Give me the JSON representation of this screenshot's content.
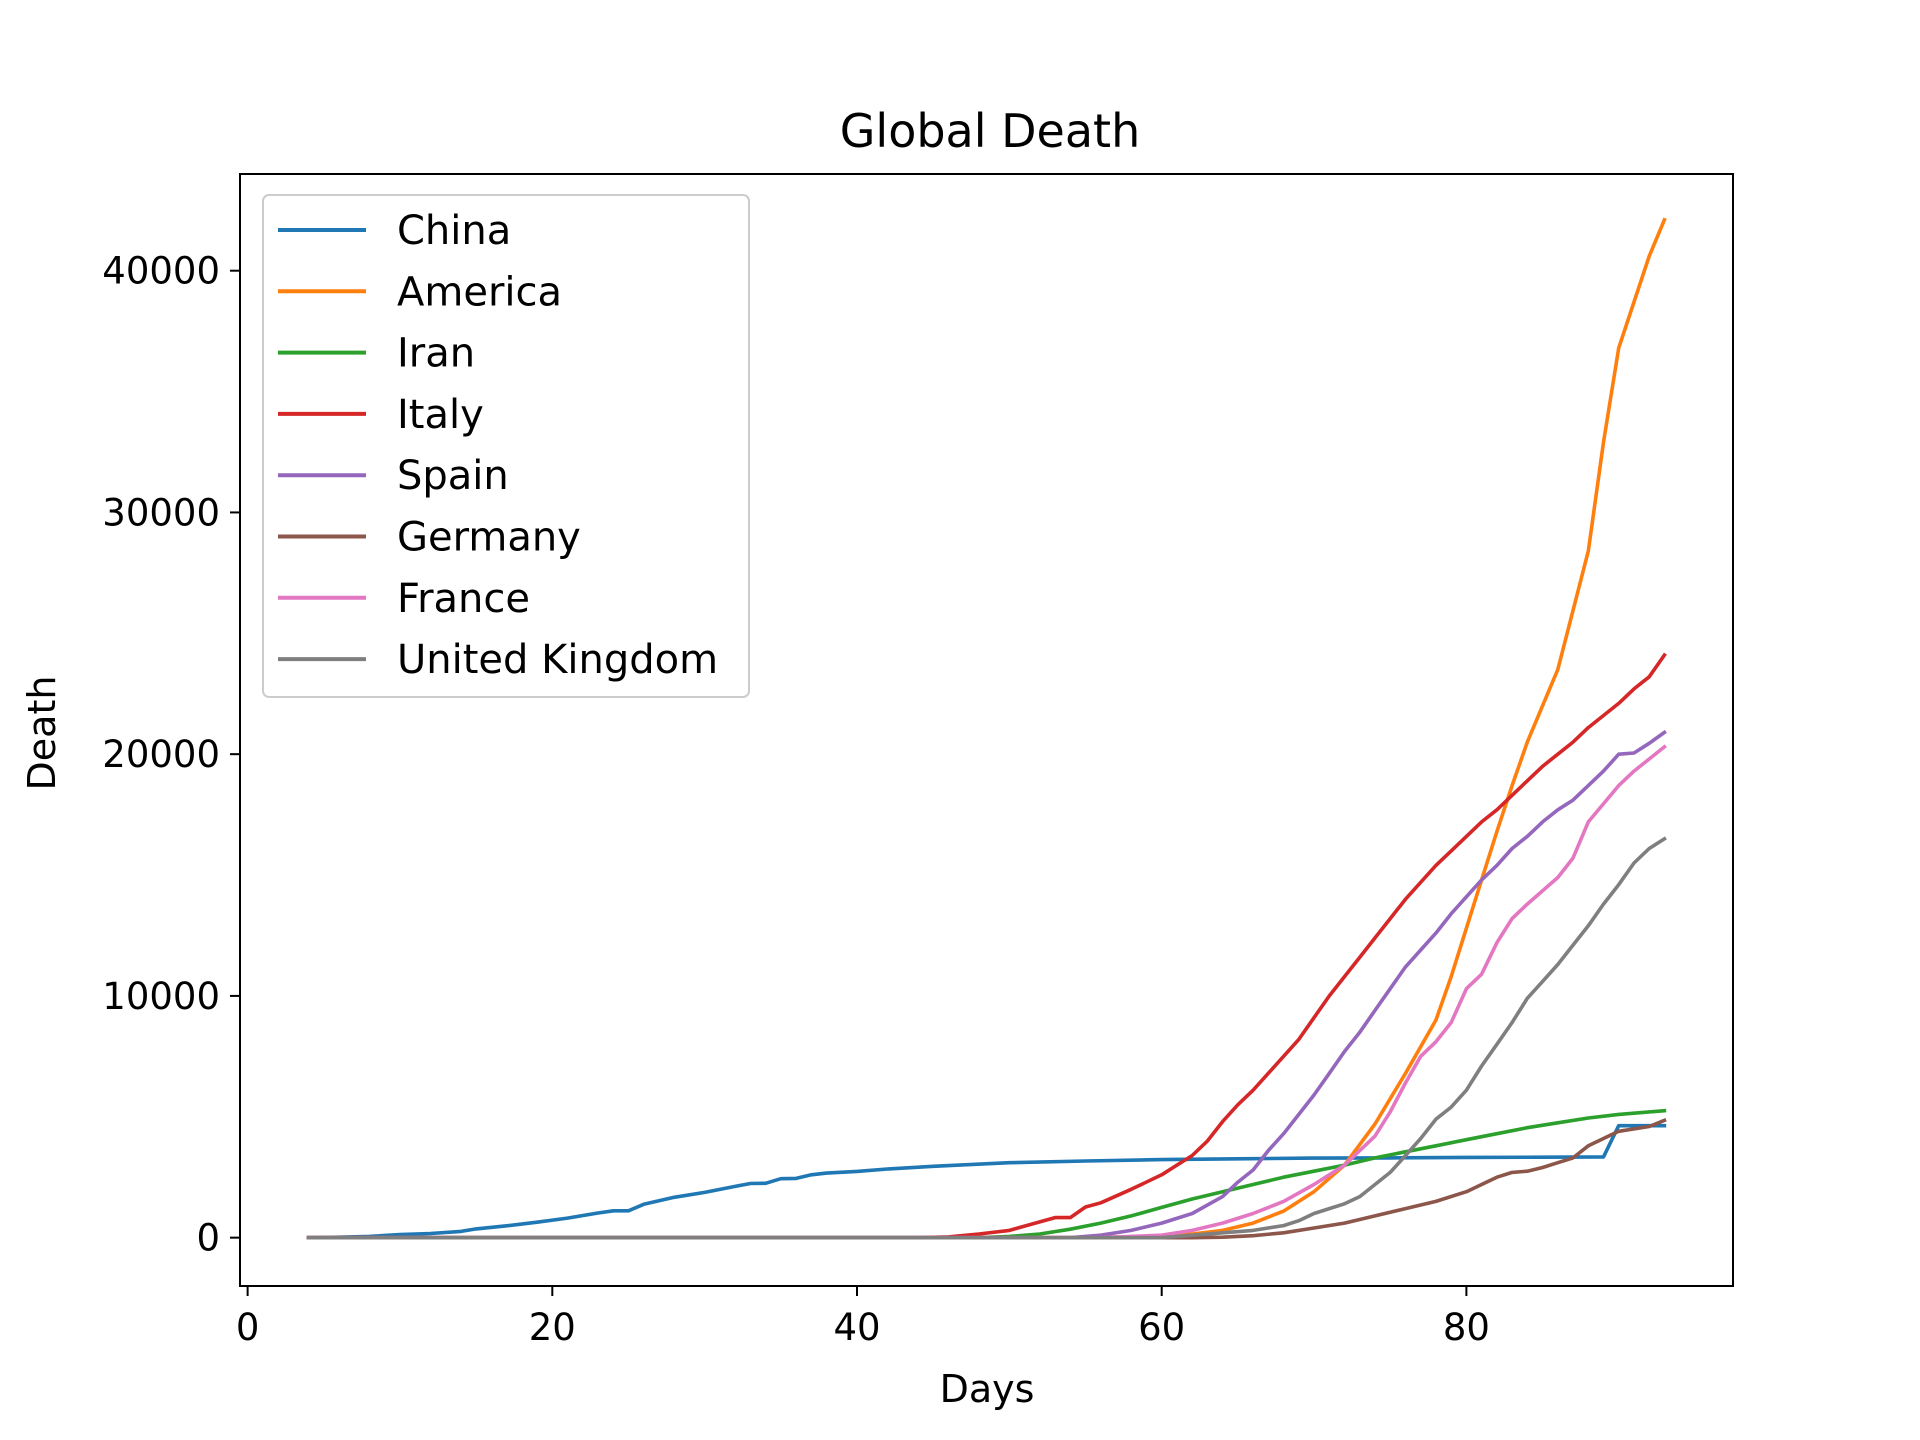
{
  "chart_data": {
    "type": "line",
    "title": "Global Death",
    "xlabel": "Days",
    "ylabel": "Death",
    "xlim": [
      -0.5,
      97.5
    ],
    "ylim": [
      -2000,
      44000
    ],
    "xticks": [
      0,
      20,
      40,
      60,
      80
    ],
    "yticks": [
      0,
      10000,
      20000,
      30000,
      40000
    ],
    "legend_position": "upper-left",
    "grid": false,
    "x_start": 4,
    "series": [
      {
        "name": "China",
        "color": "#1f77b4",
        "points": [
          [
            4,
            0
          ],
          [
            6,
            20
          ],
          [
            8,
            50
          ],
          [
            10,
            130
          ],
          [
            12,
            170
          ],
          [
            14,
            260
          ],
          [
            15,
            360
          ],
          [
            17,
            490
          ],
          [
            19,
            640
          ],
          [
            21,
            810
          ],
          [
            23,
            1020
          ],
          [
            24,
            1110
          ],
          [
            25,
            1110
          ],
          [
            26,
            1380
          ],
          [
            28,
            1670
          ],
          [
            30,
            1870
          ],
          [
            32,
            2120
          ],
          [
            33,
            2240
          ],
          [
            34,
            2250
          ],
          [
            35,
            2440
          ],
          [
            36,
            2450
          ],
          [
            37,
            2600
          ],
          [
            38,
            2670
          ],
          [
            40,
            2740
          ],
          [
            42,
            2840
          ],
          [
            45,
            2950
          ],
          [
            50,
            3100
          ],
          [
            55,
            3170
          ],
          [
            60,
            3230
          ],
          [
            65,
            3260
          ],
          [
            70,
            3290
          ],
          [
            75,
            3300
          ],
          [
            80,
            3320
          ],
          [
            85,
            3330
          ],
          [
            89,
            3340
          ],
          [
            90,
            4630
          ],
          [
            93,
            4632
          ]
        ]
      },
      {
        "name": "America",
        "color": "#ff7f0e",
        "points": [
          [
            4,
            0
          ],
          [
            50,
            0
          ],
          [
            55,
            5
          ],
          [
            60,
            60
          ],
          [
            62,
            150
          ],
          [
            64,
            300
          ],
          [
            66,
            600
          ],
          [
            68,
            1100
          ],
          [
            70,
            1900
          ],
          [
            72,
            3000
          ],
          [
            74,
            4700
          ],
          [
            76,
            6800
          ],
          [
            78,
            9000
          ],
          [
            79,
            10800
          ],
          [
            80,
            12800
          ],
          [
            81,
            14800
          ],
          [
            82,
            16800
          ],
          [
            83,
            18700
          ],
          [
            84,
            20500
          ],
          [
            86,
            23500
          ],
          [
            88,
            28400
          ],
          [
            89,
            32900
          ],
          [
            90,
            36800
          ],
          [
            92,
            40600
          ],
          [
            93,
            42100
          ]
        ]
      },
      {
        "name": "Iran",
        "color": "#2ca02c",
        "points": [
          [
            4,
            0
          ],
          [
            48,
            0
          ],
          [
            50,
            50
          ],
          [
            52,
            150
          ],
          [
            54,
            350
          ],
          [
            56,
            600
          ],
          [
            58,
            900
          ],
          [
            60,
            1250
          ],
          [
            62,
            1600
          ],
          [
            64,
            1900
          ],
          [
            66,
            2200
          ],
          [
            68,
            2500
          ],
          [
            70,
            2750
          ],
          [
            72,
            3000
          ],
          [
            74,
            3300
          ],
          [
            76,
            3550
          ],
          [
            78,
            3800
          ],
          [
            80,
            4050
          ],
          [
            82,
            4300
          ],
          [
            84,
            4550
          ],
          [
            86,
            4750
          ],
          [
            88,
            4950
          ],
          [
            90,
            5100
          ],
          [
            93,
            5250
          ]
        ]
      },
      {
        "name": "Italy",
        "color": "#d62728",
        "points": [
          [
            4,
            0
          ],
          [
            44,
            0
          ],
          [
            46,
            30
          ],
          [
            48,
            150
          ],
          [
            50,
            300
          ],
          [
            52,
            650
          ],
          [
            53,
            830
          ],
          [
            54,
            830
          ],
          [
            55,
            1270
          ],
          [
            56,
            1440
          ],
          [
            58,
            2000
          ],
          [
            60,
            2600
          ],
          [
            61,
            3000
          ],
          [
            62,
            3400
          ],
          [
            63,
            4000
          ],
          [
            64,
            4800
          ],
          [
            65,
            5500
          ],
          [
            66,
            6100
          ],
          [
            68,
            7500
          ],
          [
            69,
            8200
          ],
          [
            70,
            9100
          ],
          [
            71,
            10000
          ],
          [
            72,
            10800
          ],
          [
            73,
            11600
          ],
          [
            74,
            12400
          ],
          [
            75,
            13200
          ],
          [
            76,
            14000
          ],
          [
            77,
            14700
          ],
          [
            78,
            15400
          ],
          [
            79,
            16000
          ],
          [
            80,
            16600
          ],
          [
            81,
            17200
          ],
          [
            82,
            17700
          ],
          [
            83,
            18300
          ],
          [
            84,
            18900
          ],
          [
            85,
            19500
          ],
          [
            86,
            20000
          ],
          [
            87,
            20500
          ],
          [
            88,
            21100
          ],
          [
            89,
            21600
          ],
          [
            90,
            22100
          ],
          [
            91,
            22700
          ],
          [
            92,
            23200
          ],
          [
            93,
            24100
          ]
        ]
      },
      {
        "name": "Spain",
        "color": "#9467bd",
        "points": [
          [
            4,
            0
          ],
          [
            54,
            0
          ],
          [
            56,
            100
          ],
          [
            58,
            300
          ],
          [
            60,
            600
          ],
          [
            62,
            1000
          ],
          [
            64,
            1700
          ],
          [
            65,
            2300
          ],
          [
            66,
            2800
          ],
          [
            67,
            3600
          ],
          [
            68,
            4300
          ],
          [
            69,
            5100
          ],
          [
            70,
            5900
          ],
          [
            71,
            6800
          ],
          [
            72,
            7700
          ],
          [
            73,
            8500
          ],
          [
            74,
            9400
          ],
          [
            75,
            10300
          ],
          [
            76,
            11200
          ],
          [
            77,
            11900
          ],
          [
            78,
            12600
          ],
          [
            79,
            13400
          ],
          [
            80,
            14100
          ],
          [
            81,
            14800
          ],
          [
            82,
            15400
          ],
          [
            83,
            16100
          ],
          [
            84,
            16600
          ],
          [
            85,
            17200
          ],
          [
            86,
            17700
          ],
          [
            87,
            18100
          ],
          [
            88,
            18700
          ],
          [
            89,
            19300
          ],
          [
            90,
            20000
          ],
          [
            91,
            20050
          ],
          [
            92,
            20450
          ],
          [
            93,
            20900
          ]
        ]
      },
      {
        "name": "Germany",
        "color": "#8c564b",
        "points": [
          [
            4,
            0
          ],
          [
            62,
            0
          ],
          [
            64,
            20
          ],
          [
            66,
            80
          ],
          [
            68,
            200
          ],
          [
            70,
            400
          ],
          [
            72,
            600
          ],
          [
            74,
            900
          ],
          [
            76,
            1200
          ],
          [
            78,
            1500
          ],
          [
            80,
            1900
          ],
          [
            81,
            2200
          ],
          [
            82,
            2500
          ],
          [
            83,
            2700
          ],
          [
            84,
            2750
          ],
          [
            85,
            2900
          ],
          [
            86,
            3100
          ],
          [
            87,
            3300
          ],
          [
            88,
            3800
          ],
          [
            89,
            4100
          ],
          [
            90,
            4400
          ],
          [
            92,
            4600
          ],
          [
            93,
            4850
          ]
        ]
      },
      {
        "name": "France",
        "color": "#e377c2",
        "points": [
          [
            4,
            0
          ],
          [
            56,
            0
          ],
          [
            58,
            50
          ],
          [
            60,
            100
          ],
          [
            62,
            300
          ],
          [
            64,
            600
          ],
          [
            66,
            1000
          ],
          [
            68,
            1500
          ],
          [
            70,
            2200
          ],
          [
            72,
            3000
          ],
          [
            74,
            4200
          ],
          [
            75,
            5200
          ],
          [
            76,
            6400
          ],
          [
            77,
            7500
          ],
          [
            78,
            8100
          ],
          [
            79,
            8900
          ],
          [
            80,
            10300
          ],
          [
            81,
            10900
          ],
          [
            82,
            12200
          ],
          [
            83,
            13200
          ],
          [
            84,
            13800
          ],
          [
            86,
            14900
          ],
          [
            87,
            15700
          ],
          [
            88,
            17200
          ],
          [
            90,
            18700
          ],
          [
            91,
            19300
          ],
          [
            93,
            20300
          ]
        ]
      },
      {
        "name": "United Kingdom",
        "color": "#7f7f7f",
        "points": [
          [
            4,
            0
          ],
          [
            60,
            0
          ],
          [
            62,
            100
          ],
          [
            64,
            200
          ],
          [
            66,
            300
          ],
          [
            68,
            500
          ],
          [
            69,
            700
          ],
          [
            70,
            1000
          ],
          [
            71,
            1200
          ],
          [
            72,
            1400
          ],
          [
            73,
            1700
          ],
          [
            74,
            2200
          ],
          [
            75,
            2700
          ],
          [
            76,
            3400
          ],
          [
            77,
            4100
          ],
          [
            78,
            4900
          ],
          [
            79,
            5400
          ],
          [
            80,
            6100
          ],
          [
            81,
            7100
          ],
          [
            82,
            8000
          ],
          [
            83,
            8900
          ],
          [
            84,
            9900
          ],
          [
            85,
            10600
          ],
          [
            86,
            11300
          ],
          [
            87,
            12100
          ],
          [
            88,
            12900
          ],
          [
            89,
            13800
          ],
          [
            90,
            14600
          ],
          [
            91,
            15500
          ],
          [
            92,
            16100
          ],
          [
            93,
            16500
          ]
        ]
      }
    ]
  }
}
